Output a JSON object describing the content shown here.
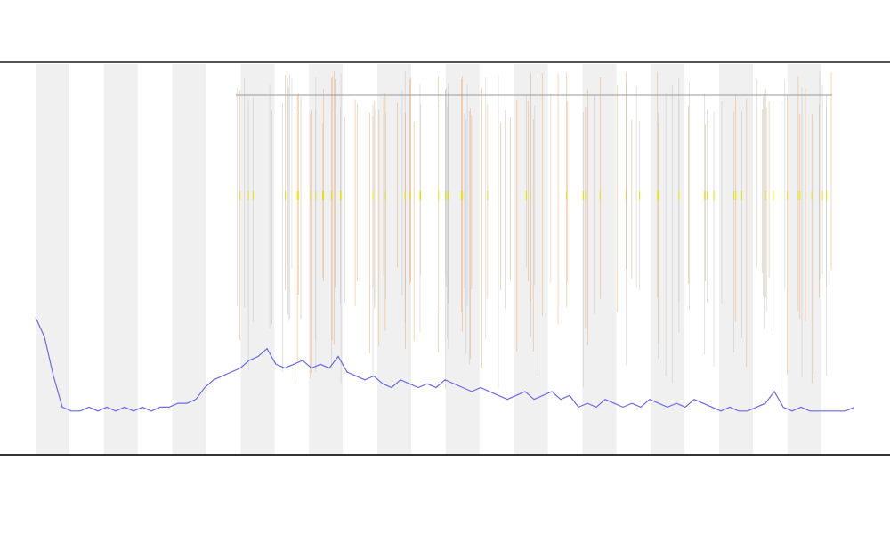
{
  "chart_data": {
    "type": "line",
    "color": "#6b6be6",
    "ylim": [
      0,
      100
    ],
    "values": [
      35,
      30,
      20,
      12,
      11,
      11,
      12,
      11,
      12,
      11,
      12,
      11,
      12,
      11,
      12,
      12,
      13,
      13,
      14,
      17,
      19,
      20,
      21,
      22,
      24,
      25,
      27,
      23,
      22,
      23,
      24,
      22,
      23,
      22,
      25,
      21,
      20,
      19,
      20,
      18,
      17,
      19,
      18,
      17,
      18,
      17,
      19,
      18,
      17,
      16,
      17,
      16,
      15,
      14,
      15,
      16,
      14,
      15,
      16,
      14,
      15,
      12,
      13,
      12,
      14,
      13,
      12,
      13,
      12,
      14,
      13,
      12,
      13,
      12,
      14,
      13,
      12,
      11,
      12,
      11,
      11,
      12,
      13,
      16,
      12,
      11,
      12,
      11,
      11,
      11,
      11,
      11,
      12
    ]
  }
}
